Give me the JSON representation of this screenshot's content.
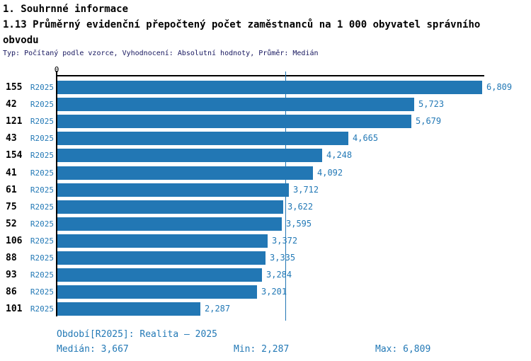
{
  "header": {
    "section_title": "1. Souhrnné informace",
    "indicator_title": "1.13 Průměrný evidenční přepočtený počet zaměstnanců na 1 000 obyvatel správního obvodu",
    "meta_line": "Typ: Počítaný podle vzorce, Vyhodnocení: Absolutní hodnoty, Průměr: Medián"
  },
  "chart_data": {
    "type": "bar",
    "orientation": "horizontal",
    "title": "1.13 Průměrný evidenční přepočtený počet zaměstnanců na 1 000 obyvatel správního obvodu",
    "xlabel": "",
    "ylabel": "",
    "value_axis": {
      "zero_label": "0",
      "min": 0,
      "max": 6.9,
      "grid": false
    },
    "bar_color": "#2277b4",
    "median_value": 3.667,
    "series_label": "R2025",
    "categories": [
      "155",
      "42",
      "121",
      "43",
      "154",
      "41",
      "61",
      "75",
      "52",
      "106",
      "88",
      "93",
      "86",
      "101"
    ],
    "rows": [
      {
        "id": "155",
        "series": "R2025",
        "value": 6.809,
        "value_label": "6,809"
      },
      {
        "id": "42",
        "series": "R2025",
        "value": 5.723,
        "value_label": "5,723"
      },
      {
        "id": "121",
        "series": "R2025",
        "value": 5.679,
        "value_label": "5,679"
      },
      {
        "id": "43",
        "series": "R2025",
        "value": 4.665,
        "value_label": "4,665"
      },
      {
        "id": "154",
        "series": "R2025",
        "value": 4.248,
        "value_label": "4,248"
      },
      {
        "id": "41",
        "series": "R2025",
        "value": 4.092,
        "value_label": "4,092"
      },
      {
        "id": "61",
        "series": "R2025",
        "value": 3.712,
        "value_label": "3,712"
      },
      {
        "id": "75",
        "series": "R2025",
        "value": 3.622,
        "value_label": "3,622"
      },
      {
        "id": "52",
        "series": "R2025",
        "value": 3.595,
        "value_label": "3,595"
      },
      {
        "id": "106",
        "series": "R2025",
        "value": 3.372,
        "value_label": "3,372"
      },
      {
        "id": "88",
        "series": "R2025",
        "value": 3.335,
        "value_label": "3,335"
      },
      {
        "id": "93",
        "series": "R2025",
        "value": 3.284,
        "value_label": "3,284"
      },
      {
        "id": "86",
        "series": "R2025",
        "value": 3.201,
        "value_label": "3,201"
      },
      {
        "id": "101",
        "series": "R2025",
        "value": 2.287,
        "value_label": "2,287"
      }
    ]
  },
  "legend": {
    "period": "Období[R2025]: Realita – 2025",
    "stats": [
      {
        "label": "Medián:",
        "value": "3,667"
      },
      {
        "label": "Min:",
        "value": "2,287"
      },
      {
        "label": "Max:",
        "value": "6,809"
      }
    ]
  }
}
